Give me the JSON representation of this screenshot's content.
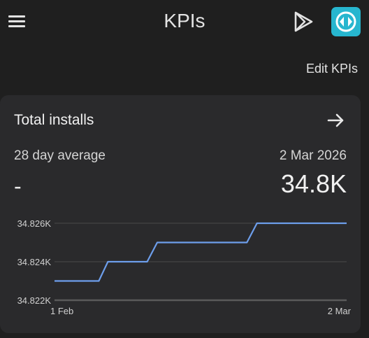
{
  "app_bar": {
    "title": "KPIs",
    "menu_icon": "menu-icon",
    "play_icon": "play-console-icon",
    "app_icon": "app-icon",
    "app_icon_color": "#27b6cf"
  },
  "edit_kpis_label": "Edit KPIs",
  "card": {
    "title": "Total installs",
    "arrow_icon": "arrow-right-icon",
    "average_label": "28 day average",
    "average_value": "-",
    "date": "2 Mar 2026",
    "current_value": "34.8K"
  },
  "chart_data": {
    "type": "line",
    "x": [
      "1 Feb",
      "5 Feb",
      "6 Feb",
      "10 Feb",
      "11 Feb",
      "20 Feb",
      "21 Feb",
      "2 Mar"
    ],
    "x_tick_labels": [
      "1 Feb",
      "2 Mar"
    ],
    "y_tick_labels": [
      "34.826K",
      "34.824K",
      "34.822K"
    ],
    "ylim": [
      34822,
      34826
    ],
    "grid": true,
    "series": [
      {
        "values": [
          34823,
          34823,
          34824,
          34824,
          34825,
          34825,
          34826,
          34826
        ],
        "color": "#6d9eeb"
      }
    ]
  }
}
